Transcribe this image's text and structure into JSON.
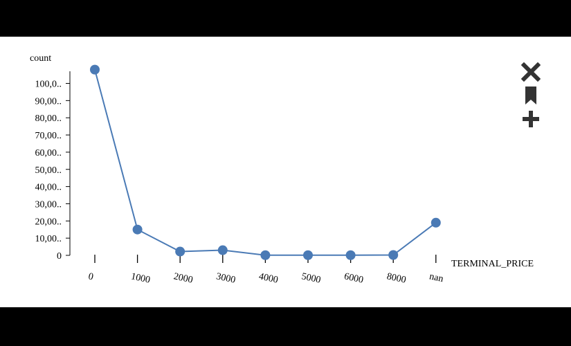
{
  "colors": {
    "series": "#4a7ab5",
    "toolbar": "#333333",
    "background": "#ffffff",
    "frame": "#000000"
  },
  "toolbar": [
    {
      "icon": "close-icon",
      "name": "close-button"
    },
    {
      "icon": "bookmark-icon",
      "name": "bookmark-button"
    },
    {
      "icon": "plus-icon",
      "name": "add-button"
    }
  ],
  "chart_data": {
    "type": "line",
    "title": "",
    "xlabel": "TERMINAL_PRICE",
    "ylabel": "count",
    "categories": [
      "0",
      "1000",
      "2000",
      "3000",
      "4000",
      "5000",
      "6000",
      "8000",
      "nan"
    ],
    "values": [
      108000,
      15000,
      2200,
      3000,
      100,
      100,
      100,
      200,
      19000
    ],
    "y_ticks": [
      0,
      10000,
      20000,
      30000,
      40000,
      50000,
      60000,
      70000,
      80000,
      90000,
      100000
    ],
    "y_tick_labels": [
      "0",
      "10,00..",
      "20,00..",
      "30,00..",
      "40,00..",
      "50,00..",
      "60,00..",
      "70,00..",
      "80,00..",
      "90,00..",
      "100,0.."
    ],
    "ylim": [
      0,
      108000
    ],
    "grid": false,
    "legend": "none"
  }
}
